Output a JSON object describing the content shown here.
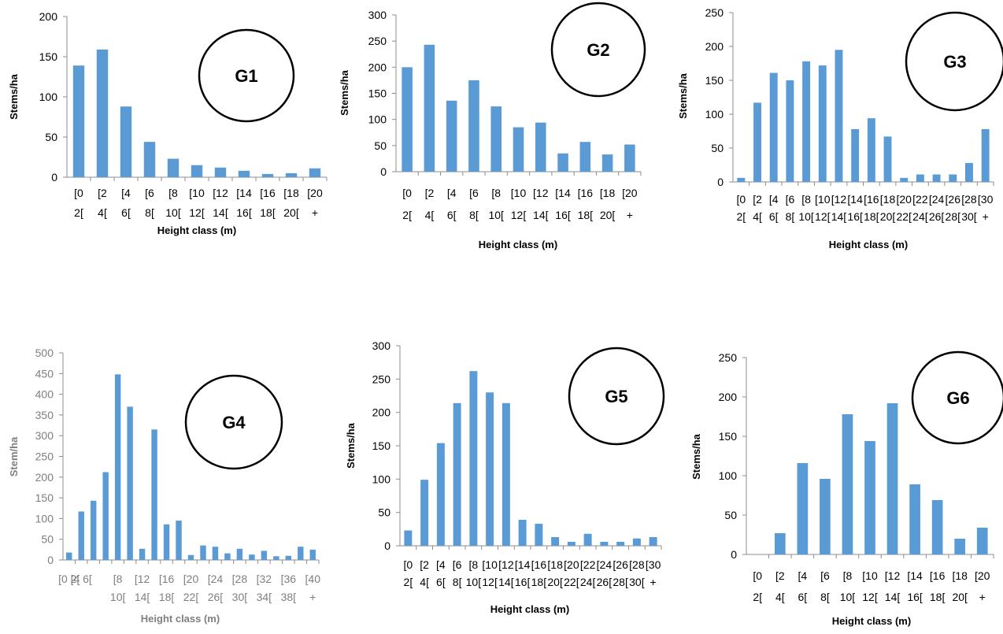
{
  "chart_data": [
    {
      "type": "bar",
      "annotation": "G1",
      "xlabel": "Height class (m)",
      "ylabel": "Stems/ha",
      "ylim": [
        0,
        200
      ],
      "yticks": [
        0,
        50,
        100,
        150,
        200
      ],
      "categories": [
        [
          "[0",
          "2["
        ],
        [
          "[2",
          "4["
        ],
        [
          "[4",
          "6["
        ],
        [
          "[6",
          "8["
        ],
        [
          "[8",
          "10["
        ],
        [
          "[10",
          "12["
        ],
        [
          "[12",
          "14["
        ],
        [
          "[14",
          "16["
        ],
        [
          "[16",
          "18["
        ],
        [
          "[18",
          "20["
        ],
        [
          "[20",
          "+"
        ]
      ],
      "values": [
        139,
        159,
        88,
        44,
        23,
        15,
        12,
        8,
        4,
        5,
        11
      ],
      "color": "#5b9bd5"
    },
    {
      "type": "bar",
      "annotation": "G2",
      "xlabel": "Height class (m)",
      "ylabel": "Stems/ha",
      "ylim": [
        0,
        300
      ],
      "yticks": [
        0,
        50,
        100,
        150,
        200,
        250,
        300
      ],
      "categories": [
        [
          "[0",
          "2["
        ],
        [
          "[2",
          "4["
        ],
        [
          "[4",
          "6["
        ],
        [
          "[6",
          "8["
        ],
        [
          "[8",
          "10["
        ],
        [
          "[10",
          "12["
        ],
        [
          "[12",
          "14["
        ],
        [
          "[14",
          "16["
        ],
        [
          "[16",
          "18["
        ],
        [
          "[18",
          "20["
        ],
        [
          "[20",
          "+"
        ]
      ],
      "values": [
        200,
        243,
        136,
        175,
        125,
        85,
        94,
        35,
        57,
        33,
        52
      ],
      "color": "#5b9bd5"
    },
    {
      "type": "bar",
      "annotation": "G3",
      "xlabel": "Height class (m)",
      "ylabel": "Stems/ha",
      "ylim": [
        0,
        250
      ],
      "yticks": [
        0,
        50,
        100,
        150,
        200,
        250
      ],
      "categories": [
        [
          "[0",
          "2["
        ],
        [
          "[2",
          "4["
        ],
        [
          "[4",
          "6["
        ],
        [
          "[6",
          "8["
        ],
        [
          "[8",
          "10["
        ],
        [
          "[10",
          "12["
        ],
        [
          "[12",
          "14["
        ],
        [
          "[14",
          "16["
        ],
        [
          "[16",
          "18["
        ],
        [
          "[18",
          "20["
        ],
        [
          "[20",
          "22["
        ],
        [
          "[22",
          "24["
        ],
        [
          "[24",
          "26["
        ],
        [
          "[26",
          "28["
        ],
        [
          "[28",
          "30["
        ],
        [
          "[30",
          "+"
        ]
      ],
      "values": [
        6,
        117,
        161,
        150,
        178,
        172,
        195,
        78,
        94,
        67,
        6,
        11,
        11,
        11,
        28,
        78
      ],
      "color": "#5b9bd5"
    },
    {
      "type": "bar",
      "annotation": "G4",
      "xlabel": "Height class (m)",
      "ylabel": "Stem/ha",
      "ylim": [
        0,
        500
      ],
      "yticks": [
        0,
        50,
        100,
        150,
        200,
        250,
        300,
        350,
        400,
        450,
        500
      ],
      "categories": [
        [
          "[0 2[",
          ""
        ],
        [
          "[4 6[",
          ""
        ],
        [
          "",
          ""
        ],
        [
          "",
          ""
        ],
        [
          "[8",
          "10["
        ],
        [
          "",
          ""
        ],
        [
          "[12",
          "14["
        ],
        [
          "",
          ""
        ],
        [
          "[16",
          "18["
        ],
        [
          "",
          ""
        ],
        [
          "[20",
          "22["
        ],
        [
          "",
          ""
        ],
        [
          "[24",
          "26["
        ],
        [
          "",
          ""
        ],
        [
          "[28",
          "30["
        ],
        [
          "",
          ""
        ],
        [
          "[32",
          "34["
        ],
        [
          "",
          ""
        ],
        [
          "[36",
          "38["
        ],
        [
          "",
          ""
        ],
        [
          "[40",
          "+"
        ]
      ],
      "values": [
        18,
        117,
        143,
        212,
        448,
        370,
        27,
        315,
        86,
        95,
        12,
        35,
        32,
        16,
        27,
        13,
        22,
        9,
        10,
        32,
        25
      ],
      "color": "#5b9bd5"
    },
    {
      "type": "bar",
      "annotation": "G5",
      "xlabel": "Height class (m)",
      "ylabel": "Stems/ha",
      "ylim": [
        0,
        300
      ],
      "yticks": [
        0,
        50,
        100,
        150,
        200,
        250,
        300
      ],
      "categories": [
        [
          "[0",
          "2["
        ],
        [
          "[2",
          "4["
        ],
        [
          "[4",
          "6["
        ],
        [
          "[6",
          "8["
        ],
        [
          "[8",
          "10["
        ],
        [
          "[10",
          "12["
        ],
        [
          "[12",
          "14["
        ],
        [
          "[14",
          "16["
        ],
        [
          "[16",
          "18["
        ],
        [
          "[18",
          "20["
        ],
        [
          "[20",
          "22["
        ],
        [
          "[22",
          "24["
        ],
        [
          "[24",
          "26["
        ],
        [
          "[26",
          "28["
        ],
        [
          "[28",
          "30["
        ],
        [
          "[30",
          "+"
        ]
      ],
      "values": [
        23,
        99,
        154,
        214,
        262,
        230,
        214,
        39,
        33,
        13,
        6,
        18,
        6,
        6,
        11,
        13
      ],
      "color": "#5b9bd5"
    },
    {
      "type": "bar",
      "annotation": "G6",
      "xlabel": "Height class (m)",
      "ylabel": "Stems/ha",
      "ylim": [
        0,
        250
      ],
      "yticks": [
        0,
        50,
        100,
        150,
        200,
        250
      ],
      "categories": [
        [
          "[0",
          "2["
        ],
        [
          "[2",
          "4["
        ],
        [
          "[4",
          "6["
        ],
        [
          "[6",
          "8["
        ],
        [
          "[8",
          "10["
        ],
        [
          "[10",
          "12["
        ],
        [
          "[12",
          "14["
        ],
        [
          "[14",
          "16["
        ],
        [
          "[16",
          "18["
        ],
        [
          "[18",
          "20["
        ],
        [
          "[20",
          "+"
        ]
      ],
      "values": [
        0,
        27,
        116,
        96,
        178,
        144,
        192,
        89,
        69,
        20,
        34
      ],
      "color": "#5b9bd5"
    }
  ]
}
